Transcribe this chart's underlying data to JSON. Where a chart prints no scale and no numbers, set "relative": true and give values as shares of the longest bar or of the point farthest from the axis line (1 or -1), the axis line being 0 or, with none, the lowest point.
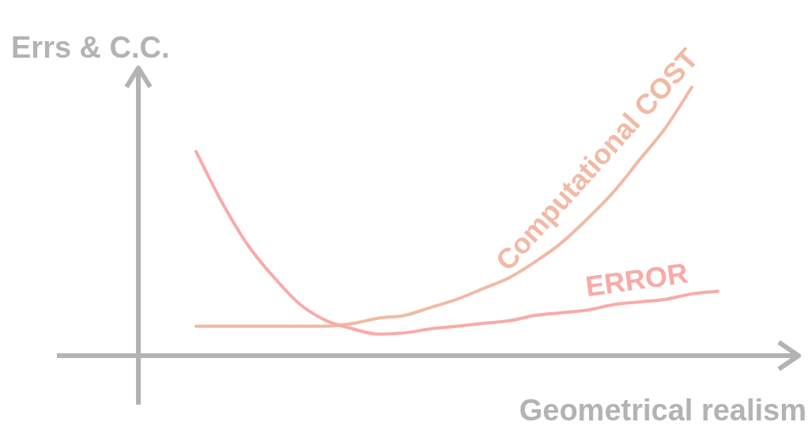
{
  "chart_data": {
    "type": "line",
    "relative": true,
    "xlabel": "Geometrical realism",
    "ylabel": "Errs & C.C.",
    "legend": false,
    "marker": "none",
    "categories": [
      null,
      null,
      null,
      null,
      null,
      null,
      null,
      null,
      null,
      null,
      null,
      null,
      null,
      null,
      null,
      null,
      null,
      null,
      null,
      null,
      null
    ],
    "series": [
      {
        "name": "ERROR",
        "color": "#f9aaa7",
        "values": [
          0.76,
          0.57,
          0.41,
          0.29,
          0.19,
          0.13,
          0.1,
          0.08,
          0.085,
          0.1,
          0.11,
          0.12,
          0.13,
          0.15,
          0.16,
          0.17,
          0.19,
          0.2,
          0.21,
          0.23,
          0.24
        ]
      },
      {
        "name": "Computational COST",
        "color": "#f2b9a4",
        "values": [
          0.11,
          0.11,
          0.11,
          0.11,
          0.11,
          0.11,
          0.12,
          0.14,
          0.15,
          0.18,
          0.21,
          0.25,
          0.29,
          0.35,
          0.42,
          0.51,
          0.61,
          0.73,
          0.85,
          1,
          null
        ]
      }
    ]
  }
}
